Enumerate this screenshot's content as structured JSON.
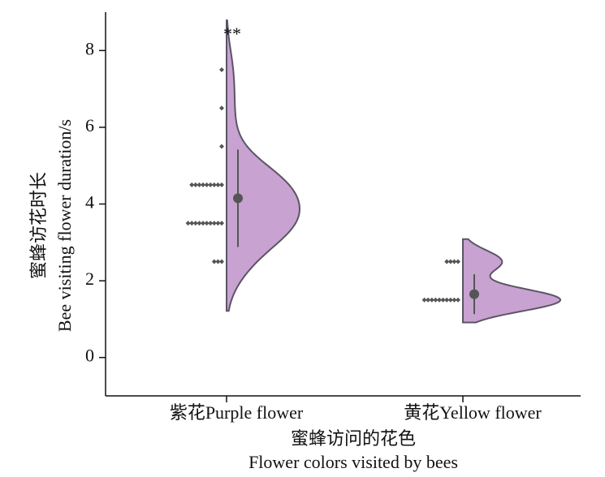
{
  "chart_data": {
    "type": "half-violin",
    "annotation": "**",
    "x_label": [
      "蜜蜂访问的花色",
      "Flower colors visited by bees"
    ],
    "y_label": [
      "蜜蜂访花时长",
      "Bee visiting flower duration/s"
    ],
    "categories": [
      "紫花Purple flower",
      "黄花Yellow flower"
    ],
    "points": [
      [
        7.5,
        6.5,
        5.5,
        4.5,
        4.5,
        4.5,
        4.5,
        4.5,
        4.5,
        4.5,
        4.5,
        4.5,
        3.5,
        3.5,
        3.5,
        3.5,
        3.5,
        3.5,
        3.5,
        3.5,
        3.5,
        3.5,
        2.5,
        2.5,
        2.5
      ],
      [
        2.5,
        2.5,
        2.5,
        2.5,
        1.5,
        1.5,
        1.5,
        1.5,
        1.5,
        1.5,
        1.5,
        1.5,
        1.5,
        1.5
      ]
    ],
    "means": [
      4.15,
      1.65
    ],
    "errors": [
      1.27,
      0.52
    ],
    "color": "#c8a2d0",
    "ylim": [
      -1,
      9
    ],
    "yticks": [
      0,
      2,
      4,
      6,
      8
    ]
  }
}
